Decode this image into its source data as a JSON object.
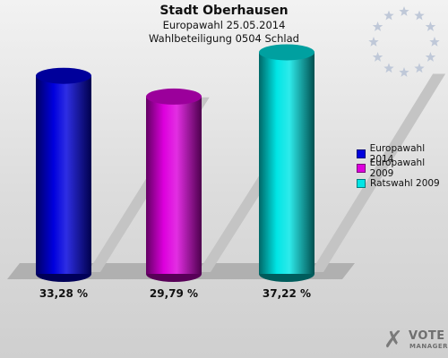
{
  "header": {
    "title": "Stadt Oberhausen",
    "subtitle_1": "Europawahl 25.05.2014",
    "subtitle_2": "Wahlbeteiligung 0504 Schlad"
  },
  "chart_data": {
    "type": "bar",
    "title": "Stadt Oberhausen",
    "subtitle": "Europawahl 25.05.2014 / Wahlbeteiligung 0504 Schlad",
    "xlabel": "",
    "ylabel": "",
    "ylim": [
      0,
      40
    ],
    "grid": false,
    "legend_position": "right",
    "categories": [
      "Europawahl 2014",
      "Europawahl 2009",
      "Ratswahl 2009"
    ],
    "values": [
      33.28,
      29.79,
      37.22
    ],
    "value_labels": [
      "33,28 %",
      "29,79 %",
      "37,22 %"
    ],
    "colors": [
      "#0000dd",
      "#dd00dd",
      "#00e5e5"
    ]
  },
  "legend": {
    "items": [
      {
        "label": "Europawahl 2014",
        "color": "#0000dd"
      },
      {
        "label": "Europawahl 2009",
        "color": "#dd00dd"
      },
      {
        "label": "Ratswahl 2009",
        "color": "#00e5e5"
      }
    ]
  },
  "logo": {
    "line1": "VOTE",
    "line2": "MANAGER",
    "icon": "checkmark-x-icon"
  },
  "eu_emblem": {
    "icon": "eu-stars-icon",
    "color": "#bfc8d8"
  }
}
